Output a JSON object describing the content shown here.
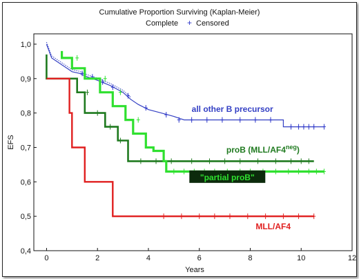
{
  "chart_data": {
    "type": "line",
    "step": true,
    "title": "Cumulative Proportion Surviving (Kaplan-Meier)",
    "legend": [
      {
        "label": "Complete",
        "marker": "line"
      },
      {
        "label": "Censored",
        "marker": "+",
        "color": "#2a34c9"
      }
    ],
    "legend_placement": "top-center",
    "xlabel": "Years",
    "ylabel": "EFS",
    "xlim": [
      -0.5,
      12
    ],
    "ylim": [
      0.4,
      1.03
    ],
    "xticks": [
      0,
      2,
      4,
      6,
      8,
      10,
      12
    ],
    "xtick_labels": [
      "0",
      "2",
      "4",
      "6",
      "8",
      "10",
      "12"
    ],
    "yticks": [
      0.4,
      0.5,
      0.6,
      0.7,
      0.8,
      0.9,
      1.0
    ],
    "ytick_labels": [
      "0,4",
      "0,5",
      "0,6",
      "0,7",
      "0,8",
      "0,9",
      "1,0"
    ],
    "grid": false,
    "series": [
      {
        "name": "all other B precursor",
        "color": "#3440c4",
        "label_pos": {
          "x": 7.3,
          "y": 0.803
        },
        "points": [
          [
            0,
            1.0
          ],
          [
            0.1,
            0.98
          ],
          [
            0.2,
            0.96
          ],
          [
            0.4,
            0.95
          ],
          [
            0.6,
            0.94
          ],
          [
            0.8,
            0.93
          ],
          [
            1.0,
            0.92
          ],
          [
            1.3,
            0.915
          ],
          [
            1.6,
            0.905
          ],
          [
            2.0,
            0.895
          ],
          [
            2.5,
            0.88
          ],
          [
            3.0,
            0.86
          ],
          [
            3.3,
            0.84
          ],
          [
            3.6,
            0.825
          ],
          [
            4.0,
            0.81
          ],
          [
            4.5,
            0.8
          ],
          [
            5.0,
            0.79
          ],
          [
            5.4,
            0.78
          ],
          [
            9.3,
            0.78
          ],
          [
            9.3,
            0.76
          ],
          [
            10.9,
            0.76
          ]
        ],
        "censored": [
          [
            1.4,
            0.915
          ],
          [
            1.8,
            0.905
          ],
          [
            2.2,
            0.89
          ],
          [
            2.6,
            0.875
          ],
          [
            3.2,
            0.85
          ],
          [
            3.9,
            0.815
          ],
          [
            4.7,
            0.795
          ],
          [
            5.2,
            0.78
          ],
          [
            5.7,
            0.78
          ],
          [
            6.3,
            0.78
          ],
          [
            6.9,
            0.78
          ],
          [
            7.6,
            0.78
          ],
          [
            8.2,
            0.78
          ],
          [
            8.8,
            0.78
          ],
          [
            9.6,
            0.76
          ],
          [
            9.9,
            0.76
          ],
          [
            10.1,
            0.76
          ],
          [
            10.3,
            0.76
          ],
          [
            10.5,
            0.76
          ],
          [
            10.9,
            0.76
          ]
        ]
      },
      {
        "name": "proB (MLL/AF4",
        "name_sup": "neg",
        "name_tail": ")",
        "color": "#1f7a1f",
        "label_pos": {
          "x": 8.5,
          "y": 0.685
        },
        "points": [
          [
            0,
            0.97
          ],
          [
            0,
            0.9
          ],
          [
            1.2,
            0.9
          ],
          [
            1.2,
            0.86
          ],
          [
            1.5,
            0.86
          ],
          [
            1.5,
            0.8
          ],
          [
            2.3,
            0.8
          ],
          [
            2.3,
            0.76
          ],
          [
            2.8,
            0.76
          ],
          [
            2.8,
            0.72
          ],
          [
            3.2,
            0.72
          ],
          [
            3.2,
            0.66
          ],
          [
            10.5,
            0.66
          ]
        ],
        "censored": [
          [
            1.6,
            0.86
          ],
          [
            2.0,
            0.8
          ],
          [
            2.5,
            0.76
          ],
          [
            2.9,
            0.72
          ],
          [
            3.7,
            0.66
          ],
          [
            4.3,
            0.66
          ],
          [
            4.9,
            0.66
          ],
          [
            5.7,
            0.66
          ],
          [
            6.4,
            0.66
          ],
          [
            7.0,
            0.66
          ],
          [
            7.6,
            0.66
          ],
          [
            8.3,
            0.66
          ],
          [
            9.0,
            0.66
          ],
          [
            9.6,
            0.66
          ],
          [
            10.0,
            0.66
          ],
          [
            10.3,
            0.66
          ]
        ]
      },
      {
        "name": "\"partial proB\"",
        "color": "#2fe02f",
        "label_pos": {
          "x": 7.1,
          "y": 0.607
        },
        "points": [
          [
            0.6,
            0.98
          ],
          [
            0.6,
            0.96
          ],
          [
            1.0,
            0.96
          ],
          [
            1.0,
            0.93
          ],
          [
            1.5,
            0.93
          ],
          [
            1.5,
            0.9
          ],
          [
            2.1,
            0.9
          ],
          [
            2.1,
            0.86
          ],
          [
            2.6,
            0.86
          ],
          [
            2.6,
            0.82
          ],
          [
            3.1,
            0.82
          ],
          [
            3.1,
            0.78
          ],
          [
            3.4,
            0.78
          ],
          [
            3.4,
            0.74
          ],
          [
            3.9,
            0.74
          ],
          [
            3.9,
            0.7
          ],
          [
            4.2,
            0.7
          ],
          [
            4.2,
            0.69
          ],
          [
            4.6,
            0.69
          ],
          [
            4.6,
            0.66
          ],
          [
            4.7,
            0.66
          ],
          [
            4.7,
            0.63
          ],
          [
            10.9,
            0.63
          ]
        ],
        "censored": [
          [
            1.2,
            0.96
          ],
          [
            2.3,
            0.9
          ],
          [
            2.9,
            0.86
          ],
          [
            3.6,
            0.78
          ],
          [
            5.0,
            0.63
          ],
          [
            5.4,
            0.63
          ],
          [
            5.8,
            0.63
          ],
          [
            6.2,
            0.63
          ],
          [
            6.6,
            0.63
          ],
          [
            7.1,
            0.63
          ],
          [
            7.6,
            0.63
          ],
          [
            8.0,
            0.63
          ],
          [
            8.5,
            0.63
          ],
          [
            9.0,
            0.63
          ],
          [
            9.5,
            0.63
          ],
          [
            9.9,
            0.63
          ],
          [
            10.3,
            0.63
          ],
          [
            10.6,
            0.63
          ],
          [
            10.9,
            0.63
          ]
        ]
      },
      {
        "name": "MLL/AF4",
        "color": "#e01f1f",
        "label_pos": {
          "x": 8.9,
          "y": 0.462
        },
        "points": [
          [
            0,
            0.9
          ],
          [
            0.9,
            0.9
          ],
          [
            0.9,
            0.8
          ],
          [
            1.0,
            0.8
          ],
          [
            1.0,
            0.7
          ],
          [
            1.5,
            0.7
          ],
          [
            1.5,
            0.6
          ],
          [
            2.6,
            0.6
          ],
          [
            2.6,
            0.5
          ],
          [
            10.5,
            0.5
          ]
        ],
        "censored": [
          [
            4.6,
            0.5
          ],
          [
            5.3,
            0.5
          ],
          [
            6.0,
            0.5
          ],
          [
            6.6,
            0.5
          ],
          [
            7.2,
            0.5
          ],
          [
            7.9,
            0.5
          ],
          [
            8.6,
            0.5
          ],
          [
            9.3,
            0.5
          ],
          [
            9.9,
            0.5
          ],
          [
            10.5,
            0.5
          ]
        ]
      }
    ]
  }
}
